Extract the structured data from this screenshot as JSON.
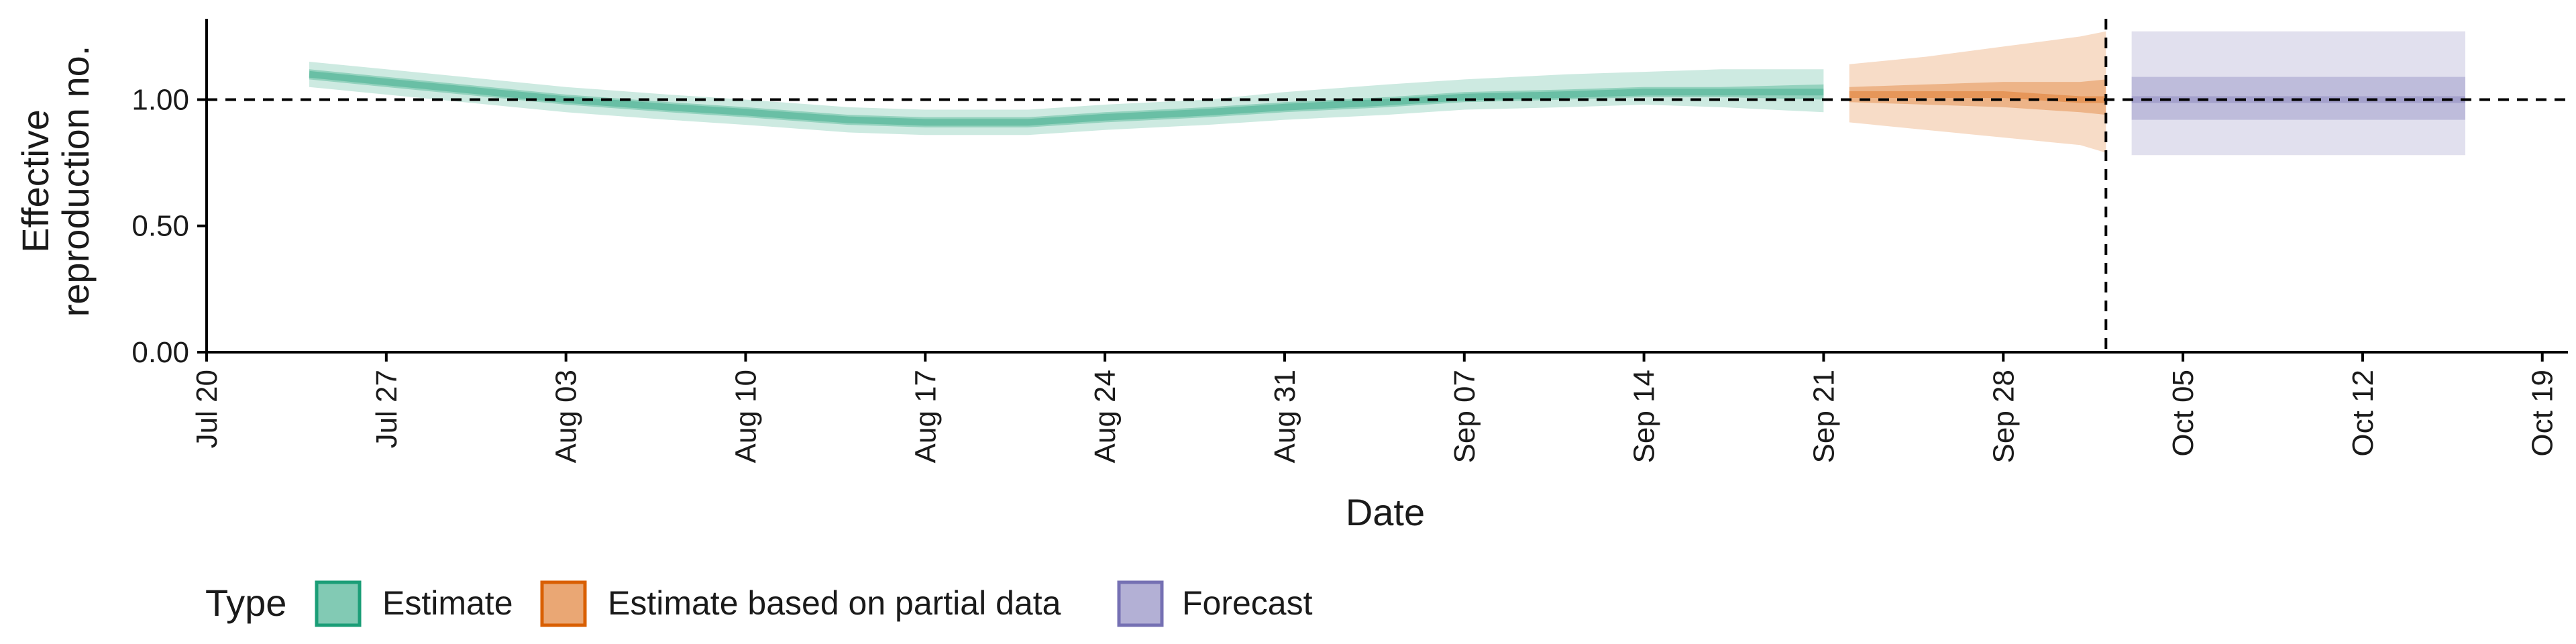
{
  "chart_data": {
    "type": "area",
    "xlabel": "Date",
    "ylabel": [
      "Effective",
      "reproduction no."
    ],
    "y_ticks": [
      0.0,
      0.5,
      1.0
    ],
    "y_tick_labels": [
      "0.00",
      "0.50",
      "1.00"
    ],
    "ylim": [
      0,
      1.32
    ],
    "xlim": [
      "2020-07-20",
      "2020-10-20"
    ],
    "x_ticks": [
      "2020-07-20",
      "2020-07-27",
      "2020-08-03",
      "2020-08-10",
      "2020-08-17",
      "2020-08-24",
      "2020-08-31",
      "2020-09-07",
      "2020-09-14",
      "2020-09-21",
      "2020-09-28",
      "2020-10-05",
      "2020-10-12",
      "2020-10-19"
    ],
    "x_tick_labels": [
      "Jul 20",
      "Jul 27",
      "Aug 03",
      "Aug 10",
      "Aug 17",
      "Aug 24",
      "Aug 31",
      "Sep 07",
      "Sep 14",
      "Sep 21",
      "Sep 28",
      "Oct 05",
      "Oct 12",
      "Oct 19"
    ],
    "reference_line_y": 1.0,
    "reference_line_x": "2020-10-02",
    "grid": false,
    "legend": {
      "title": "Type",
      "position": "bottom",
      "entries": [
        "Estimate",
        "Estimate based on partial data",
        "Forecast"
      ]
    },
    "series": [
      {
        "name": "Estimate",
        "color": "#1b9e77",
        "x": [
          "2020-07-24",
          "2020-07-27",
          "2020-07-31",
          "2020-08-03",
          "2020-08-07",
          "2020-08-10",
          "2020-08-14",
          "2020-08-17",
          "2020-08-21",
          "2020-08-24",
          "2020-08-28",
          "2020-08-31",
          "2020-09-04",
          "2020-09-07",
          "2020-09-11",
          "2020-09-14",
          "2020-09-17",
          "2020-09-21"
        ],
        "median": [
          1.1,
          1.07,
          1.03,
          1.0,
          0.97,
          0.95,
          0.92,
          0.91,
          0.91,
          0.93,
          0.95,
          0.97,
          0.99,
          1.01,
          1.02,
          1.03,
          1.03,
          1.03
        ],
        "lower_50": [
          1.08,
          1.05,
          1.01,
          0.98,
          0.95,
          0.93,
          0.9,
          0.89,
          0.89,
          0.91,
          0.93,
          0.95,
          0.97,
          0.99,
          1.0,
          1.01,
          1.01,
          1.0
        ],
        "upper_50": [
          1.12,
          1.09,
          1.05,
          1.02,
          0.99,
          0.97,
          0.94,
          0.93,
          0.93,
          0.95,
          0.97,
          0.99,
          1.01,
          1.03,
          1.04,
          1.05,
          1.05,
          1.06
        ],
        "lower_90": [
          1.05,
          1.02,
          0.98,
          0.95,
          0.92,
          0.9,
          0.87,
          0.86,
          0.86,
          0.88,
          0.9,
          0.92,
          0.94,
          0.96,
          0.97,
          0.98,
          0.97,
          0.95
        ],
        "upper_90": [
          1.15,
          1.12,
          1.08,
          1.05,
          1.02,
          1.0,
          0.97,
          0.96,
          0.96,
          0.98,
          1.0,
          1.03,
          1.06,
          1.08,
          1.1,
          1.11,
          1.12,
          1.12
        ]
      },
      {
        "name": "Estimate based on partial data",
        "color": "#d95f02",
        "x": [
          "2020-09-22",
          "2020-09-25",
          "2020-09-28",
          "2020-10-01",
          "2020-10-02"
        ],
        "median": [
          1.02,
          1.02,
          1.02,
          1.0,
          1.0
        ],
        "lower_50": [
          0.99,
          0.98,
          0.97,
          0.95,
          0.94
        ],
        "upper_50": [
          1.05,
          1.06,
          1.07,
          1.07,
          1.08
        ],
        "lower_90": [
          0.91,
          0.88,
          0.85,
          0.82,
          0.79
        ],
        "upper_90": [
          1.14,
          1.17,
          1.21,
          1.25,
          1.27
        ]
      },
      {
        "name": "Forecast",
        "color": "#7570b3",
        "x": [
          "2020-10-03",
          "2020-10-16"
        ],
        "median": [
          1.0,
          1.0
        ],
        "lower_50": [
          0.92,
          0.92
        ],
        "upper_50": [
          1.09,
          1.09
        ],
        "lower_90": [
          0.78,
          0.78
        ],
        "upper_90": [
          1.27,
          1.27
        ]
      }
    ]
  }
}
